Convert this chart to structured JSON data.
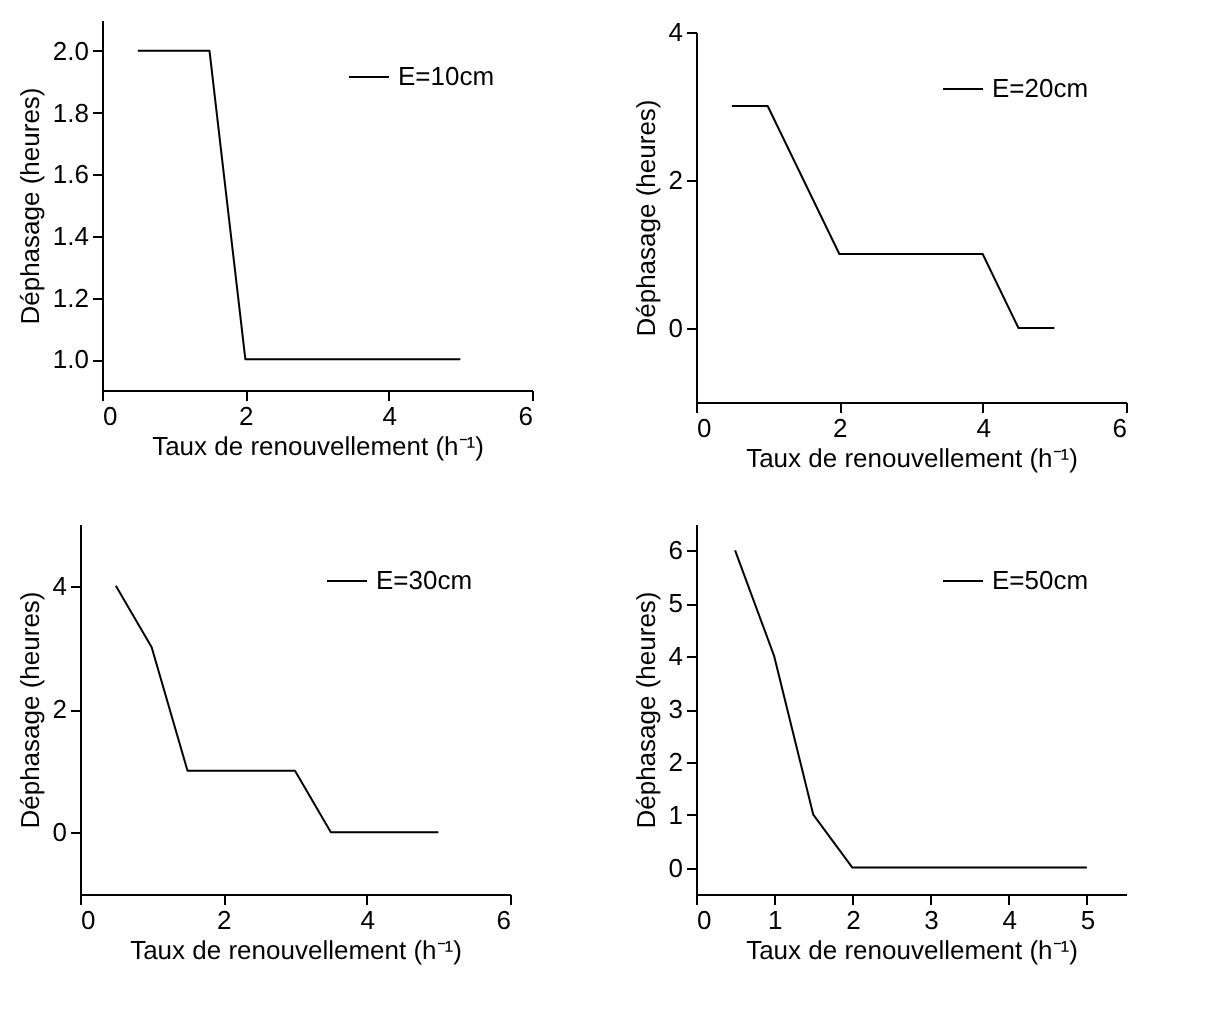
{
  "chart_data": [
    {
      "type": "line",
      "xlabel": "Taux de renouvellement (h⁻¹)",
      "ylabel": "Déphasage (heures)",
      "x": [
        0.5,
        1,
        1.5,
        2,
        2.5,
        3,
        3.5,
        4,
        4.5,
        5
      ],
      "series": [
        {
          "name": "E=10cm",
          "color": "#000000",
          "values": [
            2,
            2,
            2,
            1,
            1,
            1,
            1,
            1,
            1,
            1
          ]
        }
      ],
      "xlim": [
        0,
        6
      ],
      "xticks": [
        0,
        2,
        4,
        6
      ],
      "ylim": [
        0.9,
        2.1
      ],
      "yticks": [
        {
          "value": 1,
          "label": "1.0"
        },
        {
          "value": 1.2,
          "label": "1.2"
        },
        {
          "value": 1.4,
          "label": "1.4"
        },
        {
          "value": 1.6,
          "label": "1.6"
        },
        {
          "value": 1.8,
          "label": "1.8"
        },
        {
          "value": 2,
          "label": "2.0"
        }
      ],
      "legend": "top right",
      "grid": false,
      "marker": "none",
      "line_style": "solid"
    },
    {
      "type": "line",
      "xlabel": "Taux de renouvellement (h⁻¹)",
      "ylabel": "Déphasage (heures)",
      "x": [
        0.5,
        1,
        1.5,
        2,
        2.5,
        3,
        3.5,
        4,
        4.5,
        5
      ],
      "series": [
        {
          "name": "E=20cm",
          "color": "#000000",
          "values": [
            3,
            3,
            2,
            1,
            1,
            1,
            1,
            1,
            0,
            0
          ]
        }
      ],
      "xlim": [
        0,
        6
      ],
      "xticks": [
        0,
        2,
        4,
        6
      ],
      "ylim": [
        -1,
        4
      ],
      "yticks": [
        0,
        2,
        4
      ],
      "legend": "top right",
      "grid": false,
      "marker": "none",
      "line_style": "solid"
    },
    {
      "type": "line",
      "xlabel": "Taux de renouvellement (h⁻¹)",
      "ylabel": "Déphasage (heures)",
      "x": [
        0.5,
        1,
        1.5,
        2,
        2.5,
        3,
        3.5,
        4,
        4.5,
        5
      ],
      "series": [
        {
          "name": "E=30cm",
          "color": "#000000",
          "values": [
            4,
            3,
            1,
            1,
            1,
            1,
            0,
            0,
            0,
            0
          ]
        }
      ],
      "xlim": [
        0,
        6
      ],
      "xticks": [
        0,
        2,
        4,
        6
      ],
      "ylim": [
        -1,
        5
      ],
      "yticks": [
        0,
        2,
        4
      ],
      "legend": "top right",
      "grid": false,
      "marker": "none",
      "line_style": "solid"
    },
    {
      "type": "line",
      "xlabel": "Taux de renouvellement (h⁻¹)",
      "ylabel": "Déphasage (heures)",
      "x": [
        0.5,
        1,
        1.5,
        2,
        2.5,
        3,
        3.5,
        4,
        4.5,
        5
      ],
      "series": [
        {
          "name": "E=50cm",
          "color": "#000000",
          "values": [
            6,
            4,
            1,
            0,
            0,
            0,
            0,
            0,
            0,
            0
          ]
        }
      ],
      "xlim": [
        0,
        5.5
      ],
      "xticks": [
        0,
        1,
        2,
        3,
        4,
        5
      ],
      "ylim": [
        -0.5,
        6.5
      ],
      "yticks": [
        0,
        1,
        2,
        3,
        4,
        5,
        6
      ],
      "legend": "top right",
      "grid": false,
      "marker": "none",
      "line_style": "solid"
    }
  ]
}
